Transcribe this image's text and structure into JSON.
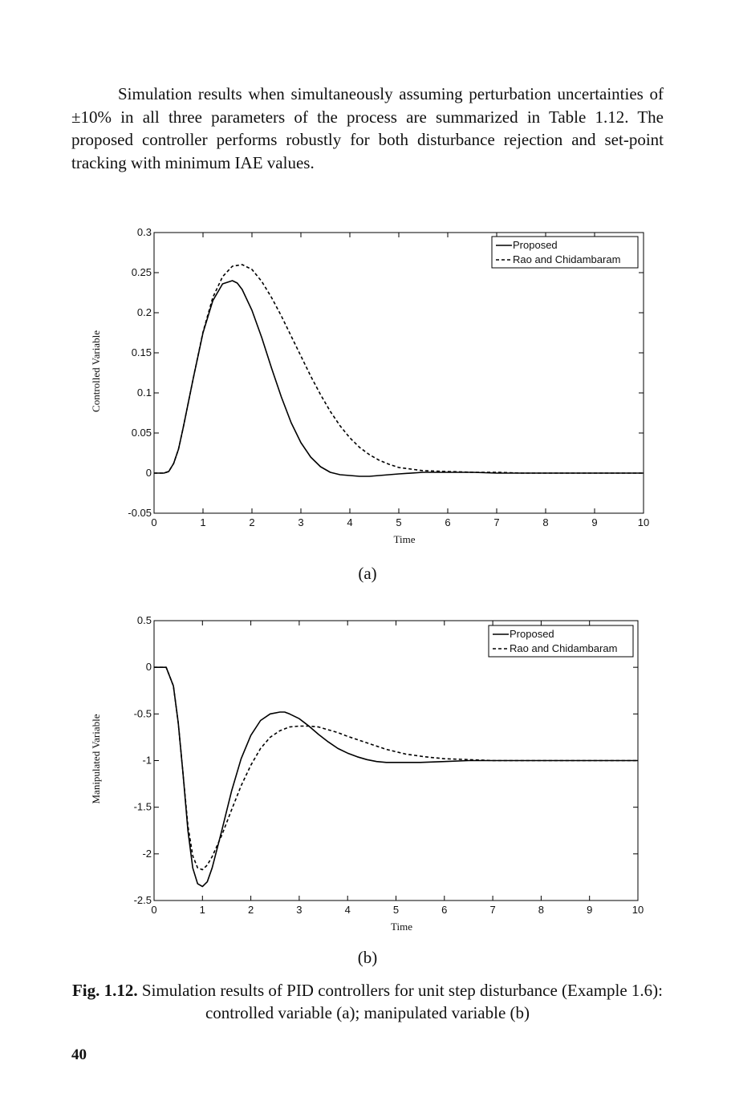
{
  "body": {
    "paragraph": "Simulation results when simultaneously assuming perturbation uncertainties of ±10% in all three parameters of the process are summarized in Table 1.12. The proposed controller performs robustly for both disturbance rejection and set-point tracking with minimum IAE values."
  },
  "figure": {
    "label_a": "(a)",
    "label_b": "(b)",
    "caption_label": "Fig. 1.12.",
    "caption_text": " Simulation results of PID controllers for unit step disturbance (Example 1.6): controlled variable (a); manipulated variable (b)"
  },
  "page_number": "40",
  "chart_data": [
    {
      "id": "a",
      "type": "line",
      "xlabel": "Time",
      "ylabel": "Controlled Variable",
      "xlim": [
        0,
        10
      ],
      "ylim": [
        -0.05,
        0.3
      ],
      "xticks": [
        "0",
        "1",
        "2",
        "3",
        "4",
        "5",
        "6",
        "7",
        "8",
        "9",
        "10"
      ],
      "yticks": [
        "-0.05",
        "0",
        "0.05",
        "0.1",
        "0.15",
        "0.2",
        "0.25",
        "0.3"
      ],
      "legend_position": "top-right",
      "series": [
        {
          "name": "Proposed",
          "style": "solid",
          "x": [
            0,
            0.2,
            0.3,
            0.4,
            0.5,
            0.6,
            0.8,
            1.0,
            1.2,
            1.4,
            1.6,
            1.7,
            1.8,
            2.0,
            2.2,
            2.4,
            2.6,
            2.8,
            3.0,
            3.2,
            3.4,
            3.6,
            3.8,
            4.0,
            4.2,
            4.4,
            4.6,
            4.8,
            5.0,
            5.5,
            6.0,
            6.5,
            7.0,
            7.5,
            8.0,
            8.5,
            9.0,
            9.5,
            10.0
          ],
          "y": [
            0,
            0,
            0.002,
            0.012,
            0.03,
            0.058,
            0.118,
            0.175,
            0.215,
            0.236,
            0.24,
            0.237,
            0.229,
            0.203,
            0.169,
            0.131,
            0.095,
            0.063,
            0.038,
            0.02,
            0.008,
            0.001,
            -0.002,
            -0.003,
            -0.004,
            -0.004,
            -0.003,
            -0.002,
            -0.001,
            0.001,
            0.001,
            0.001,
            0,
            0,
            0,
            0,
            0,
            0,
            0
          ]
        },
        {
          "name": "Rao and Chidambaram",
          "style": "dashed",
          "x": [
            0,
            0.2,
            0.3,
            0.4,
            0.5,
            0.6,
            0.8,
            1.0,
            1.2,
            1.4,
            1.6,
            1.8,
            2.0,
            2.2,
            2.4,
            2.6,
            2.8,
            3.0,
            3.2,
            3.4,
            3.6,
            3.8,
            4.0,
            4.2,
            4.4,
            4.6,
            4.8,
            5.0,
            5.5,
            6.0,
            6.5,
            7.0,
            7.5,
            8.0,
            8.5,
            9.0,
            9.5,
            10.0
          ],
          "y": [
            0,
            0,
            0.002,
            0.012,
            0.03,
            0.058,
            0.118,
            0.176,
            0.219,
            0.245,
            0.258,
            0.26,
            0.254,
            0.239,
            0.219,
            0.196,
            0.171,
            0.146,
            0.121,
            0.098,
            0.077,
            0.059,
            0.044,
            0.032,
            0.023,
            0.016,
            0.011,
            0.007,
            0.003,
            0.002,
            0.001,
            0.001,
            0,
            0,
            0,
            0,
            0,
            0
          ]
        }
      ]
    },
    {
      "id": "b",
      "type": "line",
      "xlabel": "Time",
      "ylabel": "Manipulated Variable",
      "xlim": [
        0,
        10
      ],
      "ylim": [
        -2.5,
        0.5
      ],
      "xticks": [
        "0",
        "1",
        "2",
        "3",
        "4",
        "5",
        "6",
        "7",
        "8",
        "9",
        "10"
      ],
      "yticks": [
        "-2.5",
        "-2",
        "-1.5",
        "-1",
        "-0.5",
        "0",
        "0.5"
      ],
      "legend_position": "top-right",
      "series": [
        {
          "name": "Proposed",
          "style": "solid",
          "x": [
            0,
            0.25,
            0.4,
            0.5,
            0.6,
            0.7,
            0.8,
            0.9,
            1.0,
            1.1,
            1.2,
            1.4,
            1.6,
            1.8,
            2.0,
            2.2,
            2.4,
            2.6,
            2.7,
            2.8,
            3.0,
            3.2,
            3.4,
            3.6,
            3.8,
            4.0,
            4.2,
            4.4,
            4.6,
            4.8,
            5.0,
            5.5,
            6.0,
            6.5,
            7.0,
            8.0,
            9.0,
            10.0
          ],
          "y": [
            0,
            0,
            -0.2,
            -0.6,
            -1.15,
            -1.75,
            -2.15,
            -2.32,
            -2.35,
            -2.3,
            -2.15,
            -1.75,
            -1.33,
            -0.98,
            -0.73,
            -0.57,
            -0.5,
            -0.48,
            -0.48,
            -0.5,
            -0.55,
            -0.63,
            -0.72,
            -0.8,
            -0.87,
            -0.92,
            -0.96,
            -0.99,
            -1.01,
            -1.02,
            -1.02,
            -1.02,
            -1.01,
            -1.0,
            -1.0,
            -1.0,
            -1.0,
            -1.0
          ]
        },
        {
          "name": "Rao and Chidambaram",
          "style": "dashed",
          "x": [
            0,
            0.25,
            0.4,
            0.5,
            0.6,
            0.7,
            0.8,
            0.9,
            1.0,
            1.1,
            1.2,
            1.4,
            1.6,
            1.8,
            2.0,
            2.2,
            2.4,
            2.6,
            2.8,
            3.0,
            3.2,
            3.4,
            3.6,
            3.8,
            4.0,
            4.4,
            4.8,
            5.2,
            5.6,
            6.0,
            6.5,
            7.0,
            8.0,
            9.0,
            10.0
          ],
          "y": [
            0,
            0,
            -0.2,
            -0.6,
            -1.15,
            -1.7,
            -2.02,
            -2.15,
            -2.17,
            -2.12,
            -2.03,
            -1.8,
            -1.53,
            -1.27,
            -1.05,
            -0.87,
            -0.75,
            -0.68,
            -0.64,
            -0.63,
            -0.63,
            -0.64,
            -0.67,
            -0.7,
            -0.74,
            -0.81,
            -0.88,
            -0.93,
            -0.96,
            -0.98,
            -0.99,
            -1.0,
            -1.0,
            -1.0,
            -1.0
          ]
        }
      ]
    }
  ]
}
